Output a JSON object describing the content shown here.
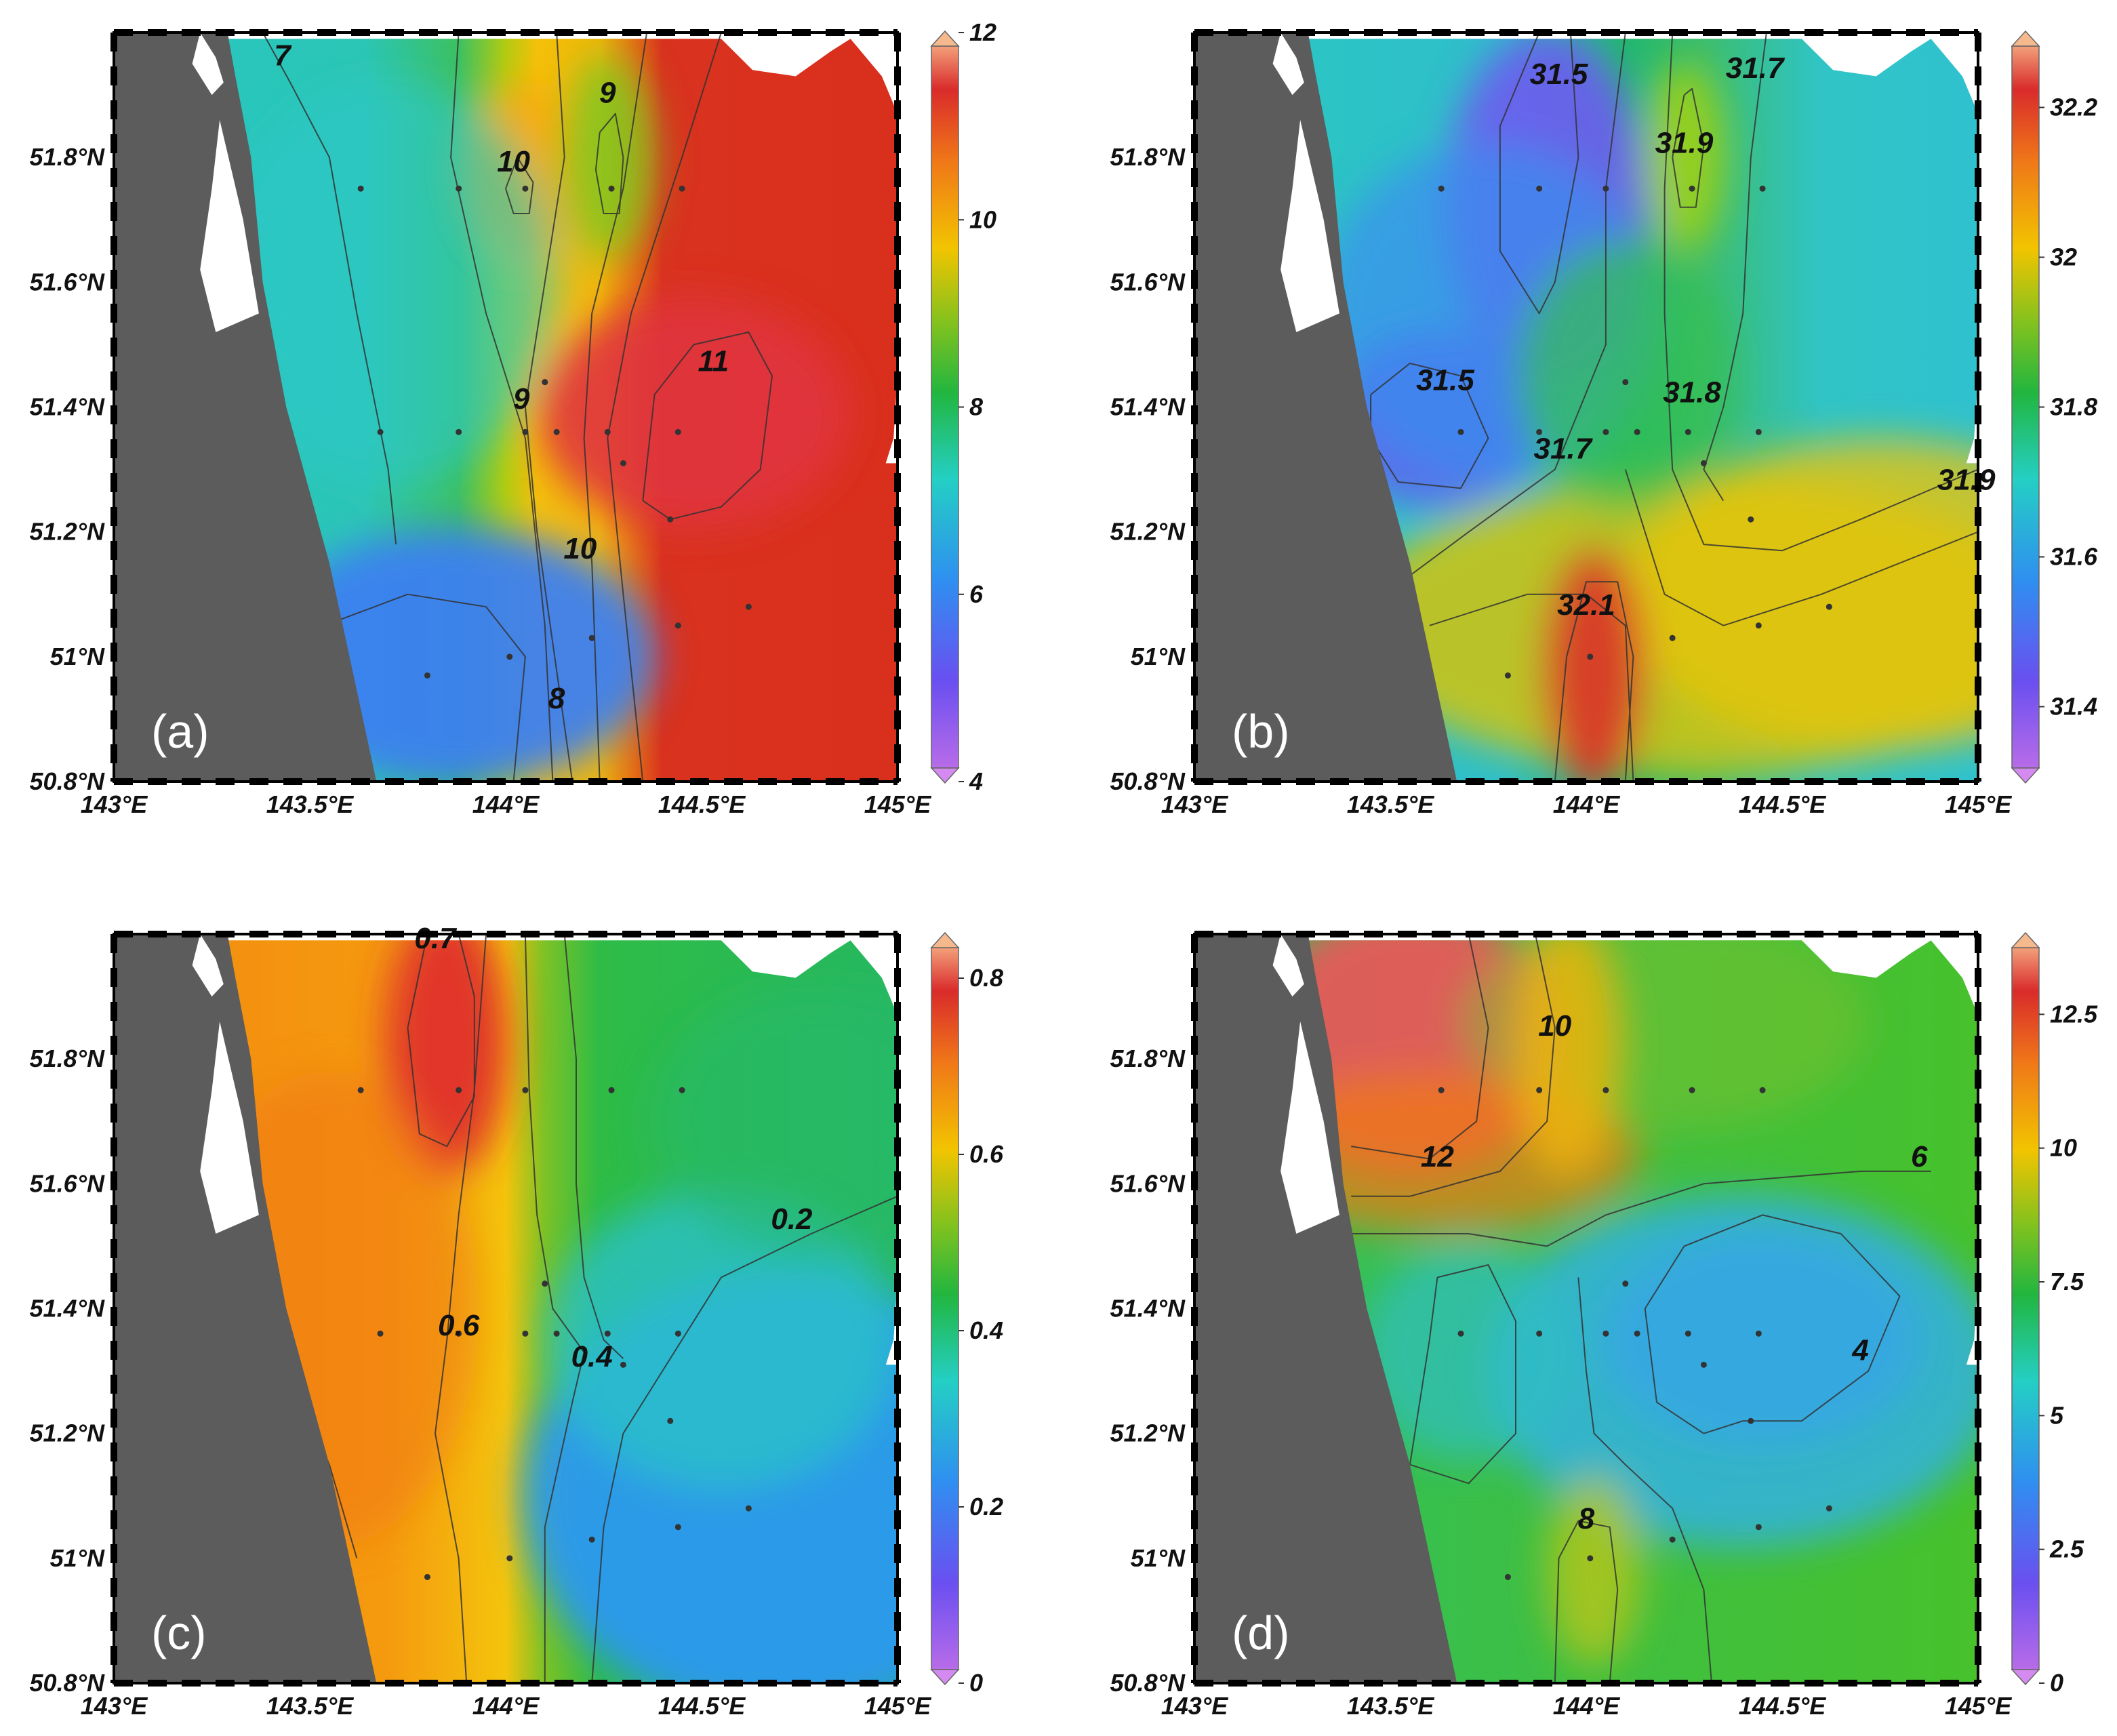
{
  "figure": {
    "axes": {
      "lon_ticks": [
        "143°E",
        "143.5°E",
        "144°E",
        "144.5°E",
        "145°E"
      ],
      "lat_ticks": [
        "50.8°N",
        "51°N",
        "51.2°N",
        "51.4°N",
        "51.6°N",
        "51.8°N"
      ]
    },
    "stations": [
      [
        143.63,
        51.75
      ],
      [
        143.88,
        51.75
      ],
      [
        144.05,
        51.75
      ],
      [
        144.27,
        51.75
      ],
      [
        144.45,
        51.75
      ],
      [
        143.68,
        51.36
      ],
      [
        143.88,
        51.36
      ],
      [
        144.05,
        51.36
      ],
      [
        144.13,
        51.36
      ],
      [
        144.26,
        51.36
      ],
      [
        144.44,
        51.36
      ],
      [
        144.1,
        51.44
      ],
      [
        144.3,
        51.31
      ],
      [
        144.42,
        51.22
      ],
      [
        144.22,
        51.03
      ],
      [
        144.44,
        51.05
      ],
      [
        144.62,
        51.08
      ],
      [
        143.8,
        50.97
      ],
      [
        144.01,
        51.0
      ]
    ],
    "panels": [
      {
        "label": "(a)",
        "colorbar": {
          "ticks": [
            "4",
            "6",
            "8",
            "10",
            "12"
          ],
          "min": 4,
          "max": 12
        },
        "contour_labels": [
          {
            "text": "7",
            "lon": 143.43,
            "lat": 51.96
          },
          {
            "text": "9",
            "lon": 144.26,
            "lat": 51.9
          },
          {
            "text": "10",
            "lon": 144.02,
            "lat": 51.79
          },
          {
            "text": "11",
            "lon": 144.53,
            "lat": 51.47
          },
          {
            "text": "9",
            "lon": 144.04,
            "lat": 51.41
          },
          {
            "text": "10",
            "lon": 144.19,
            "lat": 51.17
          },
          {
            "text": "8",
            "lon": 144.13,
            "lat": 50.93
          }
        ]
      },
      {
        "label": "(b)",
        "colorbar": {
          "ticks": [
            "31.4",
            "31.6",
            "31.8",
            "32",
            "32.2"
          ],
          "min": 31.3,
          "max": 32.3
        },
        "contour_labels": [
          {
            "text": "31.5",
            "lon": 143.93,
            "lat": 51.93
          },
          {
            "text": "31.7",
            "lon": 144.43,
            "lat": 51.94
          },
          {
            "text": "31.9",
            "lon": 144.25,
            "lat": 51.82
          },
          {
            "text": "31.5",
            "lon": 143.64,
            "lat": 51.44
          },
          {
            "text": "31.8",
            "lon": 144.27,
            "lat": 51.42
          },
          {
            "text": "31.7",
            "lon": 143.94,
            "lat": 51.33
          },
          {
            "text": "31.9",
            "lon": 144.97,
            "lat": 51.28
          },
          {
            "text": "32.1",
            "lon": 144.0,
            "lat": 51.08
          }
        ]
      },
      {
        "label": "(c)",
        "colorbar": {
          "ticks": [
            "0",
            "0.2",
            "0.4",
            "0.6",
            "0.8"
          ],
          "min": 0,
          "max": 0.85
        },
        "contour_labels": [
          {
            "text": "0.7",
            "lon": 143.82,
            "lat": 51.99
          },
          {
            "text": "0.2",
            "lon": 144.73,
            "lat": 51.54
          },
          {
            "text": "0.6",
            "lon": 143.88,
            "lat": 51.37
          },
          {
            "text": "0.4",
            "lon": 144.22,
            "lat": 51.32
          }
        ]
      },
      {
        "label": "(d)",
        "colorbar": {
          "ticks": [
            "0",
            "2.5",
            "5",
            "7.5",
            "10",
            "12.5"
          ],
          "min": 0,
          "max": 14
        },
        "contour_labels": [
          {
            "text": "10",
            "lon": 143.92,
            "lat": 51.85
          },
          {
            "text": "12",
            "lon": 143.62,
            "lat": 51.64
          },
          {
            "text": "6",
            "lon": 144.85,
            "lat": 51.64
          },
          {
            "text": "4",
            "lon": 144.7,
            "lat": 51.33
          },
          {
            "text": "8",
            "lon": 144.0,
            "lat": 51.06
          }
        ]
      }
    ]
  }
}
